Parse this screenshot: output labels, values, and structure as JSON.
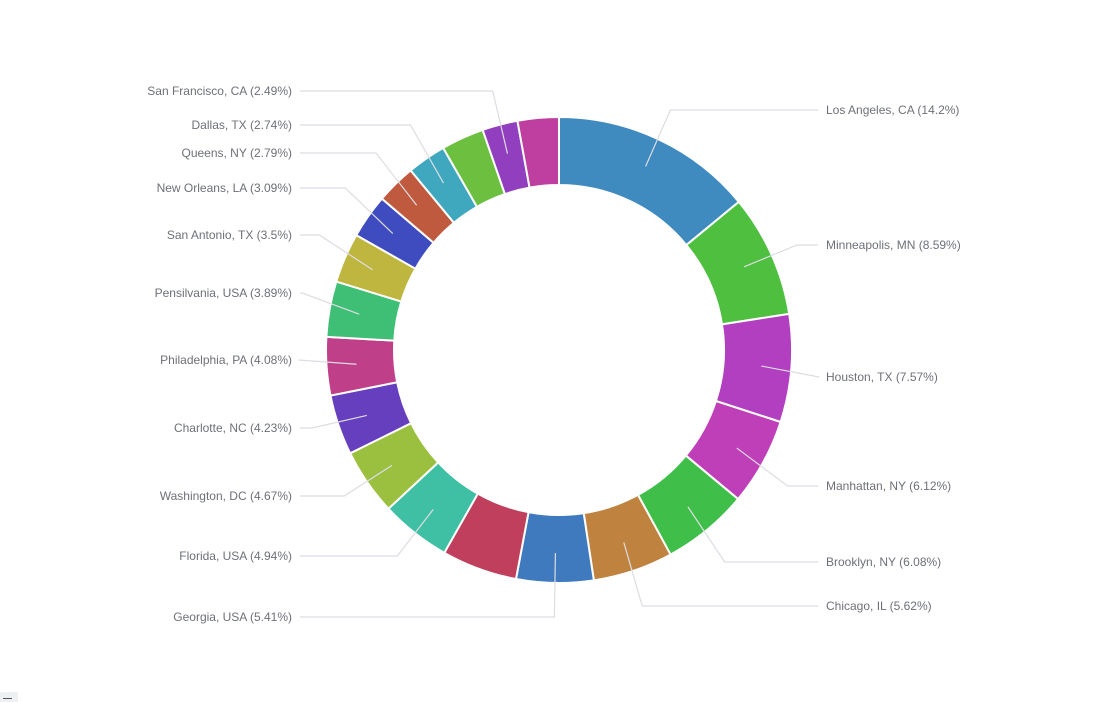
{
  "chart_data": {
    "type": "pie",
    "variant": "donut",
    "title": "",
    "start": "top",
    "direction": "clockwise",
    "slices": [
      {
        "label": "Los Angeles, CA (14.2%)",
        "name": "Los Angeles, CA",
        "value": 14.2,
        "color": "#3f8abf"
      },
      {
        "label": "Minneapolis, MN (8.59%)",
        "name": "Minneapolis, MN",
        "value": 8.59,
        "color": "#4ebf3f"
      },
      {
        "label": "Houston, TX (7.57%)",
        "name": "Houston, TX",
        "value": 7.57,
        "color": "#b13fbf"
      },
      {
        "label": "Manhattan, NY (6.12%)",
        "name": "Manhattan, NY",
        "value": 6.12,
        "color": "#bf3fb8"
      },
      {
        "label": "Brooklyn, NY (6.08%)",
        "name": "Brooklyn, NY",
        "value": 6.08,
        "color": "#3fbf4a"
      },
      {
        "label": "Chicago, IL (5.62%)",
        "name": "Chicago, IL",
        "value": 5.62,
        "color": "#bf833f"
      },
      {
        "label": "Georgia, USA (5.41%)",
        "name": "Georgia, USA",
        "value": 5.41,
        "color": "#3f7abf"
      },
      {
        "label": null,
        "name": null,
        "value": 5.3,
        "color": "#bf3f5c"
      },
      {
        "label": "Florida, USA (4.94%)",
        "name": "Florida, USA",
        "value": 4.94,
        "color": "#3fbfa3"
      },
      {
        "label": "Washington, DC (4.67%)",
        "name": "Washington, DC",
        "value": 4.67,
        "color": "#9bbf3f"
      },
      {
        "label": "Charlotte, NC (4.23%)",
        "name": "Charlotte, NC",
        "value": 4.23,
        "color": "#663fbf"
      },
      {
        "label": "Philadelphia, PA (4.08%)",
        "name": "Philadelphia, PA",
        "value": 4.08,
        "color": "#bf3f88"
      },
      {
        "label": "Pensilvania, USA (3.89%)",
        "name": "Pensilvania, USA",
        "value": 3.89,
        "color": "#3fbf75"
      },
      {
        "label": "San Antonio, TX (3.5%)",
        "name": "San Antonio, TX",
        "value": 3.5,
        "color": "#bfb63f"
      },
      {
        "label": "New Orleans, LA (3.09%)",
        "name": "New Orleans, LA",
        "value": 3.09,
        "color": "#3f4cbf"
      },
      {
        "label": "Queens, NY (2.79%)",
        "name": "Queens, NY",
        "value": 2.79,
        "color": "#bf5a3f"
      },
      {
        "label": "Dallas, TX (2.74%)",
        "name": "Dallas, TX",
        "value": 2.74,
        "color": "#3fa8bf"
      },
      {
        "label": null,
        "name": null,
        "value": 3.0,
        "color": "#6cbf3f"
      },
      {
        "label": "San Francisco, CA (2.49%)",
        "name": "San Francisco, CA",
        "value": 2.49,
        "color": "#913fbf"
      },
      {
        "label": null,
        "name": null,
        "value": 2.89,
        "color": "#bf3fa0"
      }
    ]
  }
}
